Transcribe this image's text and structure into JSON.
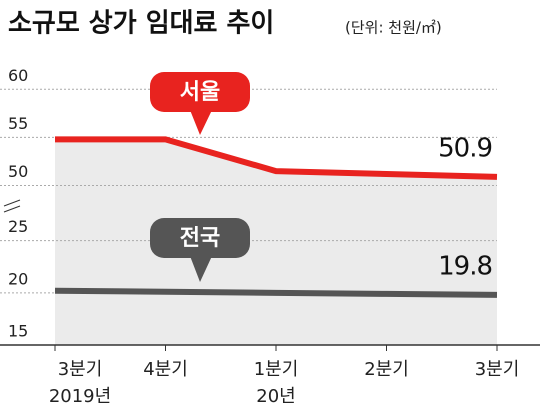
{
  "chart_data": {
    "type": "line",
    "title": "소규모 상가 임대료 추이",
    "subtitle": "(단위: 천원/㎡)",
    "categories": [
      "3분기",
      "4분기",
      "1분기",
      "2분기",
      "3분기"
    ],
    "x_sublabels": [
      "2019년",
      null,
      "20년",
      null,
      null
    ],
    "y_segments": [
      {
        "ylim": [
          48.5,
          62
        ],
        "yticks": [
          50,
          55,
          60
        ]
      },
      {
        "ylim": [
          15,
          26.5
        ],
        "yticks": [
          15,
          20,
          25
        ]
      }
    ],
    "grid": true,
    "series": [
      {
        "name": "서울",
        "color": "#e8231f",
        "segment": 0,
        "values": [
          54.8,
          54.8,
          51.5,
          51.2,
          50.9
        ]
      },
      {
        "name": "전국",
        "color": "#555555",
        "segment": 1,
        "values": [
          20.2,
          20.1,
          20.0,
          19.9,
          19.8
        ]
      }
    ]
  }
}
